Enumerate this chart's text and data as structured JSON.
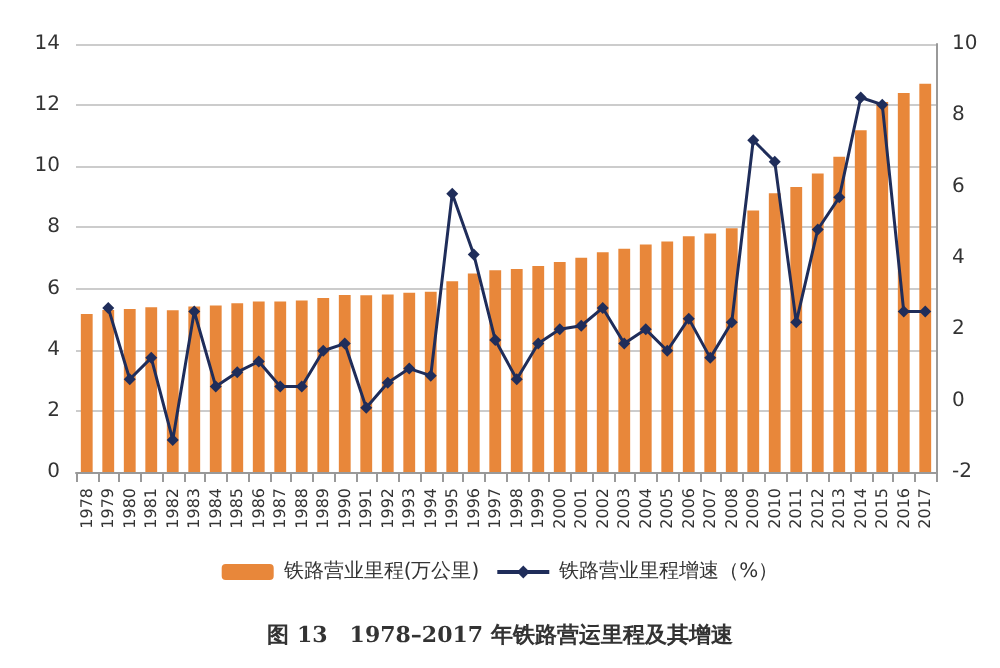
{
  "chart_data": {
    "type": "bar",
    "title": "图 13　1978–2017 年铁路营运里程及其增速",
    "categories": [
      "1978",
      "1979",
      "1980",
      "1981",
      "1982",
      "1983",
      "1984",
      "1985",
      "1986",
      "1987",
      "1988",
      "1989",
      "1990",
      "1991",
      "1992",
      "1993",
      "1994",
      "1995",
      "1996",
      "1997",
      "1998",
      "1999",
      "2000",
      "2001",
      "2002",
      "2003",
      "2004",
      "2005",
      "2006",
      "2007",
      "2008",
      "2009",
      "2010",
      "2011",
      "2012",
      "2013",
      "2014",
      "2015",
      "2016",
      "2017"
    ],
    "series": [
      {
        "name": "铁路营业里程(万公里)",
        "color": "#e8873a",
        "values": [
          5.17,
          5.3,
          5.33,
          5.39,
          5.29,
          5.41,
          5.45,
          5.52,
          5.58,
          5.58,
          5.61,
          5.69,
          5.79,
          5.78,
          5.81,
          5.86,
          5.9,
          6.24,
          6.49,
          6.6,
          6.64,
          6.74,
          6.87,
          7.01,
          7.19,
          7.3,
          7.44,
          7.54,
          7.71,
          7.8,
          7.97,
          8.55,
          9.12,
          9.32,
          9.76,
          10.31,
          11.18,
          12.1,
          12.4,
          12.7
        ]
      },
      {
        "name": "铁路营业里程增速（%）",
        "type": "line",
        "axis": "y2",
        "color": "#1f2d5a",
        "values": [
          null,
          2.6,
          0.6,
          1.2,
          -1.1,
          2.5,
          0.4,
          0.8,
          1.1,
          0.4,
          0.4,
          1.4,
          1.6,
          -0.2,
          0.5,
          0.9,
          0.7,
          5.8,
          4.1,
          1.7,
          0.6,
          1.6,
          2.0,
          2.1,
          2.6,
          1.6,
          2.0,
          1.4,
          2.3,
          1.2,
          2.2,
          7.3,
          6.7,
          2.2,
          4.8,
          5.7,
          8.5,
          8.3,
          2.5,
          2.5
        ]
      }
    ],
    "ylim": [
      0,
      14
    ],
    "yticks": [
      0,
      2,
      4,
      6,
      8,
      10,
      12,
      14
    ],
    "y2lim": [
      -2,
      10
    ],
    "y2ticks": [
      -2,
      0,
      2,
      4,
      6,
      8,
      10
    ],
    "grid": "y",
    "legend": "bottom",
    "marker": "diamond",
    "line_style": "solid"
  }
}
